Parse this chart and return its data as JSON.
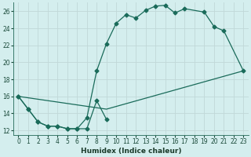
{
  "xlabel": "Humidex (Indice chaleur)",
  "bg_color": "#d4eeee",
  "grid_color": "#c0d8d8",
  "line_color": "#1a6b5a",
  "xlim": [
    -0.5,
    23.5
  ],
  "ylim": [
    11.5,
    27.0
  ],
  "xticks": [
    0,
    1,
    2,
    3,
    4,
    5,
    6,
    7,
    8,
    9,
    10,
    11,
    12,
    13,
    14,
    15,
    16,
    17,
    18,
    19,
    20,
    21,
    22,
    23
  ],
  "yticks": [
    12,
    14,
    16,
    18,
    20,
    22,
    24,
    26
  ],
  "line1_x": [
    0,
    1,
    2,
    3,
    4,
    5,
    6,
    7,
    8,
    9
  ],
  "line1_y": [
    16.0,
    14.5,
    13.0,
    12.5,
    12.5,
    12.2,
    12.2,
    12.2,
    15.5,
    13.3
  ],
  "line2_x": [
    0,
    1,
    2,
    3,
    4,
    5,
    6,
    7,
    8,
    9,
    10,
    11,
    12,
    13,
    14,
    15,
    16,
    17,
    19,
    20,
    21,
    23
  ],
  "line2_y": [
    16.0,
    14.5,
    13.0,
    12.5,
    12.5,
    12.2,
    12.2,
    13.5,
    19.0,
    22.2,
    24.6,
    25.6,
    25.2,
    26.1,
    26.6,
    26.7,
    25.8,
    26.3,
    25.9,
    24.2,
    23.7,
    19.0
  ],
  "line3_x": [
    0,
    9,
    23
  ],
  "line3_y": [
    16.0,
    14.5,
    19.0
  ],
  "marker_size": 2.5,
  "line_width": 0.9
}
